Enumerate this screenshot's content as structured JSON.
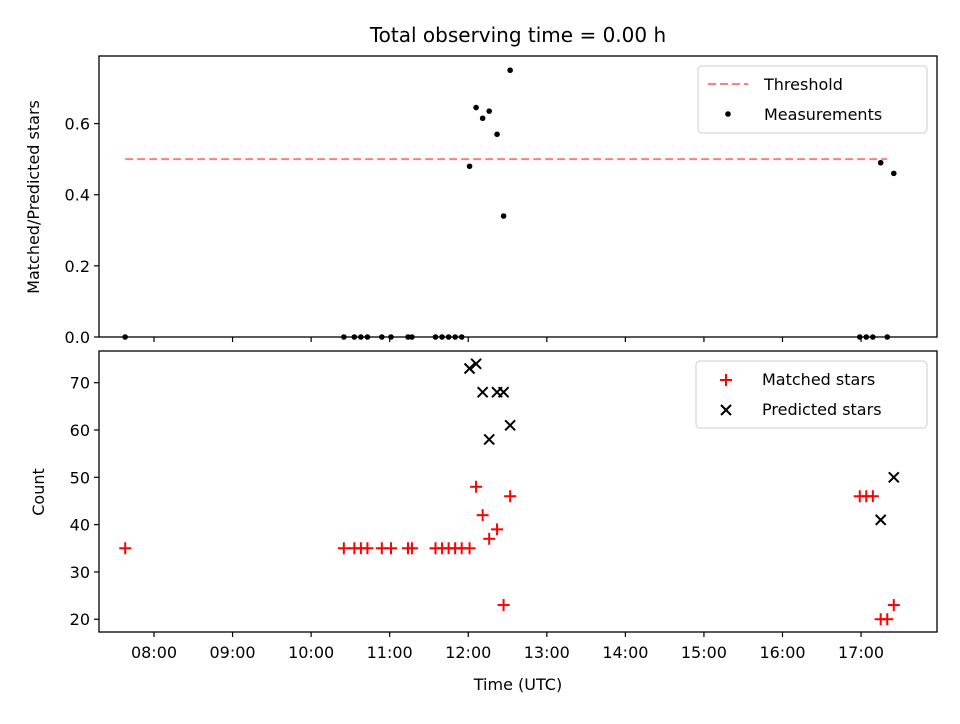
{
  "figure": {
    "title": "Total observing time = 0.00 h",
    "xlabel": "Time (UTC)"
  },
  "colors": {
    "threshold": "#ff7f7f",
    "measurements": "#000000",
    "matched": "#ff0000",
    "predicted": "#000000"
  },
  "chart_data": [
    {
      "type": "scatter",
      "title": "Total observing time = 0.00 h",
      "xlabel": "",
      "ylabel": "Matched/Predicted stars",
      "xlim": [
        "07:18",
        "17:58"
      ],
      "ylim": [
        0,
        0.79
      ],
      "yticks": [
        "0.0",
        "0.2",
        "0.4",
        "0.6"
      ],
      "grid": false,
      "legend": "top-right",
      "series": [
        {
          "name": "Threshold",
          "kind": "dashed-line",
          "color": "#ff7f7f",
          "x": [
            "07:38",
            "17:20"
          ],
          "y": [
            0.5,
            0.5
          ]
        },
        {
          "name": "Measurements",
          "kind": "dot",
          "color": "#000000",
          "x": [
            "07:38",
            "10:25",
            "10:33",
            "10:38",
            "10:43",
            "10:54",
            "11:01",
            "11:14",
            "11:17",
            "11:35",
            "11:40",
            "11:45",
            "11:50",
            "11:55",
            "12:01",
            "12:06",
            "12:11",
            "12:16",
            "12:22",
            "12:27",
            "12:32",
            "16:59",
            "17:04",
            "17:09",
            "17:15",
            "17:20",
            "17:25"
          ],
          "y": [
            0,
            0,
            0,
            0,
            0,
            0,
            0,
            0,
            0,
            0,
            0,
            0,
            0,
            0,
            0.48,
            0.645,
            0.615,
            0.635,
            0.57,
            0.34,
            0.75,
            0,
            0,
            0,
            0.49,
            0,
            0.46
          ]
        }
      ]
    },
    {
      "type": "scatter",
      "xlabel": "Time (UTC)",
      "ylabel": "Count",
      "xlim": [
        "07:18",
        "17:58"
      ],
      "ylim": [
        17.3,
        76.7
      ],
      "yticks": [
        "20",
        "30",
        "40",
        "50",
        "60",
        "70"
      ],
      "xticks": [
        "08:00",
        "09:00",
        "10:00",
        "11:00",
        "12:00",
        "13:00",
        "14:00",
        "15:00",
        "16:00",
        "17:00"
      ],
      "grid": false,
      "legend": "top-right",
      "series": [
        {
          "name": "Matched stars",
          "marker": "plus",
          "color": "#ff0000",
          "x": [
            "07:38",
            "10:25",
            "10:33",
            "10:38",
            "10:43",
            "10:54",
            "11:01",
            "11:14",
            "11:17",
            "11:35",
            "11:40",
            "11:45",
            "11:50",
            "11:55",
            "12:01",
            "12:06",
            "12:11",
            "12:16",
            "12:22",
            "12:27",
            "12:32",
            "16:59",
            "17:04",
            "17:09",
            "17:15",
            "17:20",
            "17:25"
          ],
          "y": [
            35,
            35,
            35,
            35,
            35,
            35,
            35,
            35,
            35,
            35,
            35,
            35,
            35,
            35,
            35,
            48,
            42,
            37,
            39,
            23,
            46,
            46,
            46,
            46,
            20,
            20,
            23
          ]
        },
        {
          "name": "Predicted stars",
          "marker": "x",
          "color": "#000000",
          "x": [
            "12:01",
            "12:06",
            "12:11",
            "12:16",
            "12:22",
            "12:27",
            "12:32",
            "17:15",
            "17:25"
          ],
          "y": [
            73,
            74,
            68,
            58,
            68,
            68,
            61,
            41,
            50
          ]
        }
      ]
    }
  ]
}
